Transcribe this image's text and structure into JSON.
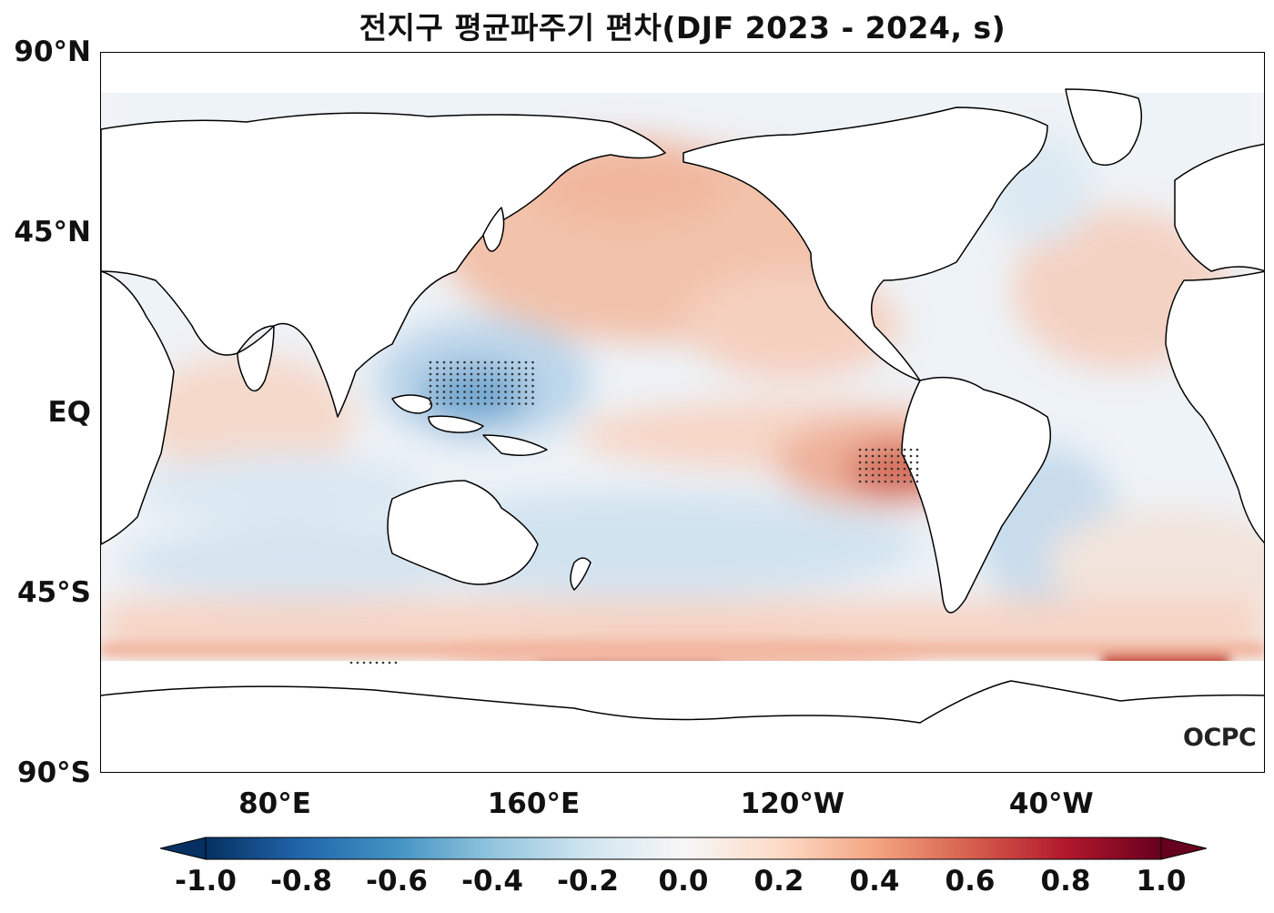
{
  "title": "전지구 평균파주기 편차(DJF 2023 - 2024, s)",
  "logo": "OCPC",
  "y_axis": {
    "labels": [
      {
        "text": "90°N",
        "lat": 90
      },
      {
        "text": "45°N",
        "lat": 45
      },
      {
        "text": "EQ",
        "lat": 0
      },
      {
        "text": "45°S",
        "lat": -45
      },
      {
        "text": "90°S",
        "lat": -90
      }
    ]
  },
  "x_axis": {
    "labels": [
      {
        "text": "80°E",
        "lon": 80
      },
      {
        "text": "160°E",
        "lon": 160
      },
      {
        "text": "120°W",
        "lon": 240
      },
      {
        "text": "40°W",
        "lon": 320
      }
    ],
    "range": [
      26,
      386
    ]
  },
  "colorbar": {
    "colormap": "RdBu_r",
    "min": -1.0,
    "max": 1.0,
    "extend": "both",
    "ticks": [
      "-1.0",
      "-0.8",
      "-0.6",
      "-0.4",
      "-0.2",
      "0.0",
      "0.2",
      "0.4",
      "0.6",
      "0.8",
      "1.0"
    ]
  },
  "colors": {
    "strong_negative": "#2166ac",
    "weak_negative": "#d1e5f0",
    "neutral": "#f7f7f7",
    "weak_positive": "#fddbc7",
    "strong_positive": "#b2182b",
    "land": "#ffffff",
    "coastline": "#000000"
  },
  "map": {
    "projection": "PlateCarree",
    "lat_range": [
      -90,
      90
    ],
    "lon_range": [
      26,
      386
    ],
    "significance_marker": "stippling"
  }
}
